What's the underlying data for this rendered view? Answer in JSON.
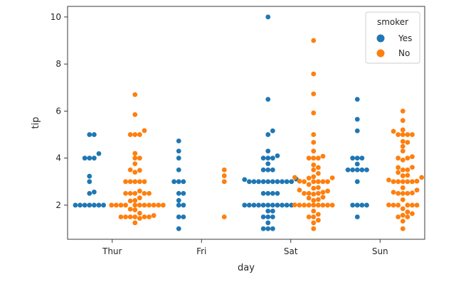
{
  "chart_data": {
    "type": "scatter",
    "subtype": "swarm",
    "xlabel": "day",
    "ylabel": "tip",
    "categories": [
      "Thur",
      "Fri",
      "Sat",
      "Sun"
    ],
    "yticks": [
      2,
      4,
      6,
      8,
      10
    ],
    "ylim": [
      0.55,
      10.45
    ],
    "grid": false,
    "legend": {
      "title": "smoker",
      "placement": "top-right"
    },
    "series": [
      {
        "name": "Yes",
        "color": "#1f77b4",
        "values": {
          "Thur": [
            2,
            2,
            2,
            2,
            2,
            2,
            2,
            2.5,
            2.56,
            3,
            3.23,
            4,
            4,
            4,
            4.19,
            5,
            5
          ],
          "Fri": [
            1,
            1.5,
            1.5,
            2,
            2,
            2.2,
            2.5,
            2.5,
            3,
            3,
            3,
            3.5,
            4,
            4.3,
            4.73
          ],
          "Sat": [
            1,
            1,
            1,
            1.25,
            1.5,
            1.5,
            1.5,
            1.75,
            1.75,
            2,
            2,
            2,
            2,
            2,
            2,
            2,
            2,
            2,
            2,
            2,
            2.5,
            2.5,
            2.5,
            2.5,
            3,
            3,
            3,
            3,
            3,
            3,
            3,
            3,
            3,
            3,
            3.09,
            3.11,
            3.5,
            3.5,
            3.5,
            3.76,
            4,
            4,
            4,
            4.1,
            4.3,
            5,
            5.16,
            6.5,
            10
          ],
          "Sun": [
            1.5,
            2,
            2,
            2,
            2,
            3,
            3.5,
            3.5,
            3.5,
            3.5,
            3.5,
            3.75,
            4,
            4,
            4,
            5.16,
            5.65,
            6.5
          ]
        }
      },
      {
        "name": "No",
        "color": "#ff7f0e",
        "values": {
          "Thur": [
            1.25,
            1.44,
            1.5,
            1.5,
            1.5,
            1.5,
            1.5,
            1.5,
            1.56,
            1.66,
            1.8,
            1.83,
            2,
            2,
            2,
            2,
            2,
            2,
            2,
            2,
            2,
            2,
            2,
            2.18,
            2.2,
            2.31,
            2.5,
            2.5,
            2.5,
            2.5,
            2.5,
            2.6,
            3,
            3,
            3,
            3,
            3,
            3.4,
            3.48,
            3.5,
            3.76,
            4,
            4,
            4.2,
            5,
            5,
            5,
            5.17,
            5.85,
            6.7
          ],
          "Fri": [
            1.5,
            3,
            3.25,
            3.5
          ],
          "Sat": [
            1,
            1.25,
            1.36,
            1.5,
            1.5,
            1.61,
            1.75,
            2,
            2,
            2,
            2,
            2,
            2,
            2,
            2,
            2.01,
            2.2,
            2.24,
            2.3,
            2.34,
            2.47,
            2.5,
            2.5,
            2.5,
            2.55,
            2.6,
            2.64,
            2.72,
            2.75,
            2.88,
            3,
            3,
            3,
            3,
            3,
            3.02,
            3.15,
            3.16,
            3.18,
            3.21,
            3.35,
            3.5,
            3.6,
            3.71,
            4,
            4,
            4,
            4.08,
            4.3,
            4.67,
            5,
            5.92,
            6.73,
            7.58,
            9
          ],
          "Sun": [
            1,
            1.32,
            1.5,
            1.5,
            1.57,
            1.64,
            1.71,
            1.85,
            2,
            2,
            2,
            2,
            2,
            2.01,
            2.23,
            2.5,
            2.5,
            2.5,
            2.52,
            2.55,
            2.64,
            2.74,
            3,
            3,
            3,
            3,
            3,
            3.02,
            3.07,
            3.18,
            3.25,
            3.27,
            3.39,
            3.5,
            3.5,
            3.6,
            3.61,
            3.92,
            4,
            4,
            4.06,
            4.3,
            4.5,
            4.67,
            4.71,
            5,
            5,
            5,
            5,
            5.14,
            5.2,
            5.6,
            6
          ]
        }
      }
    ]
  }
}
